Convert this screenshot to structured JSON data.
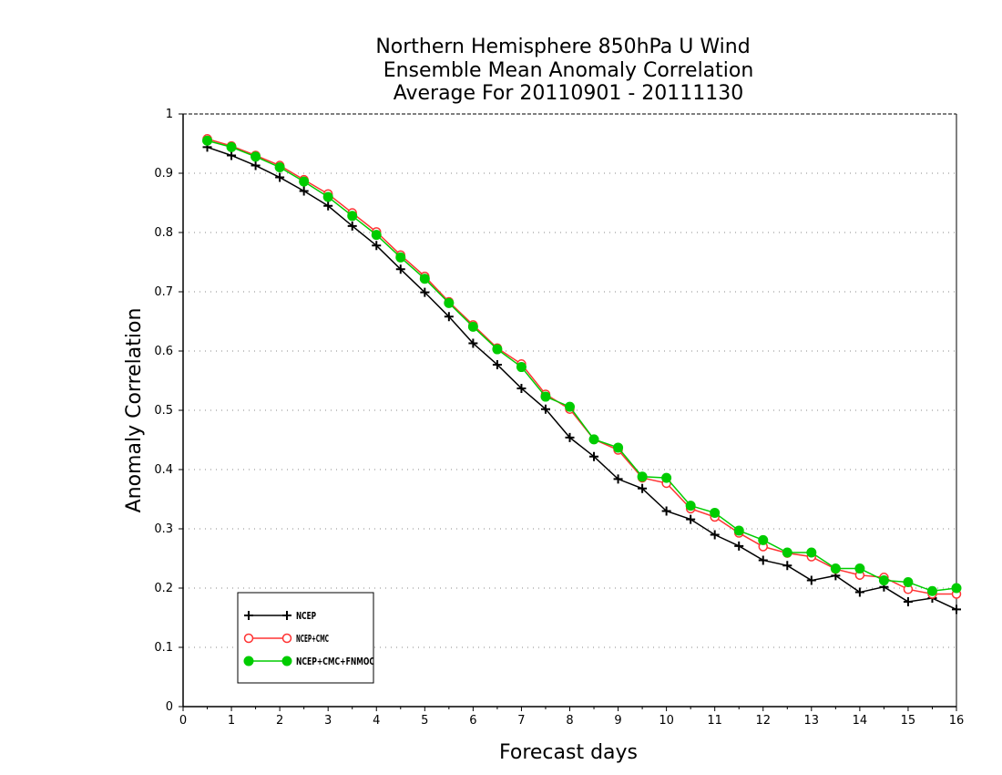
{
  "chart_data": {
    "type": "line",
    "title": [
      "Northern Hemisphere 850hPa U Wind",
      "Ensemble Mean Anomaly Correlation",
      "Average For 20110901 - 20111130"
    ],
    "xlabel": "Forecast days",
    "ylabel": "Anomaly Correlation",
    "xlim": [
      0,
      16
    ],
    "ylim": [
      0,
      1
    ],
    "xticks": [
      "0",
      "1",
      "2",
      "3",
      "4",
      "5",
      "6",
      "7",
      "8",
      "9",
      "10",
      "11",
      "12",
      "13",
      "14",
      "15",
      "16"
    ],
    "yticks": [
      "0",
      "0.1",
      "0.2",
      "0.3",
      "0.4",
      "0.5",
      "0.6",
      "0.7",
      "0.8",
      "0.9",
      "1"
    ],
    "grid": true,
    "legend_position": "bottom-left",
    "x": [
      0.5,
      1,
      1.5,
      2,
      2.5,
      3,
      3.5,
      4,
      4.5,
      5,
      5.5,
      6,
      6.5,
      7,
      7.5,
      8,
      8.5,
      9,
      9.5,
      10,
      10.5,
      11,
      11.5,
      12,
      12.5,
      13,
      13.5,
      14,
      14.5,
      15,
      15.5,
      16
    ],
    "series": [
      {
        "name": "NCEP",
        "color": "#000000",
        "marker": "plus",
        "values": [
          0.944,
          0.93,
          0.913,
          0.893,
          0.87,
          0.845,
          0.811,
          0.778,
          0.738,
          0.699,
          0.658,
          0.613,
          0.577,
          0.537,
          0.502,
          0.454,
          0.422,
          0.384,
          0.368,
          0.33,
          0.316,
          0.29,
          0.271,
          0.247,
          0.238,
          0.213,
          0.221,
          0.193,
          0.202,
          0.177,
          0.183,
          0.164
        ]
      },
      {
        "name": "NCEP+CMC",
        "color": "#ff3333",
        "marker": "open-circle",
        "values": [
          0.958,
          0.946,
          0.93,
          0.913,
          0.889,
          0.865,
          0.833,
          0.801,
          0.762,
          0.726,
          0.683,
          0.644,
          0.605,
          0.578,
          0.527,
          0.502,
          0.451,
          0.433,
          0.386,
          0.377,
          0.334,
          0.32,
          0.293,
          0.27,
          0.259,
          0.253,
          0.232,
          0.222,
          0.218,
          0.198,
          0.19,
          0.19
        ]
      },
      {
        "name": "NCEP+CMC+FNMOC",
        "color": "#00cc00",
        "marker": "filled-circle",
        "values": [
          0.955,
          0.944,
          0.928,
          0.91,
          0.886,
          0.86,
          0.828,
          0.796,
          0.758,
          0.722,
          0.681,
          0.641,
          0.603,
          0.573,
          0.523,
          0.506,
          0.451,
          0.437,
          0.388,
          0.386,
          0.339,
          0.327,
          0.297,
          0.281,
          0.26,
          0.26,
          0.233,
          0.233,
          0.213,
          0.21,
          0.195,
          0.2
        ]
      }
    ]
  }
}
